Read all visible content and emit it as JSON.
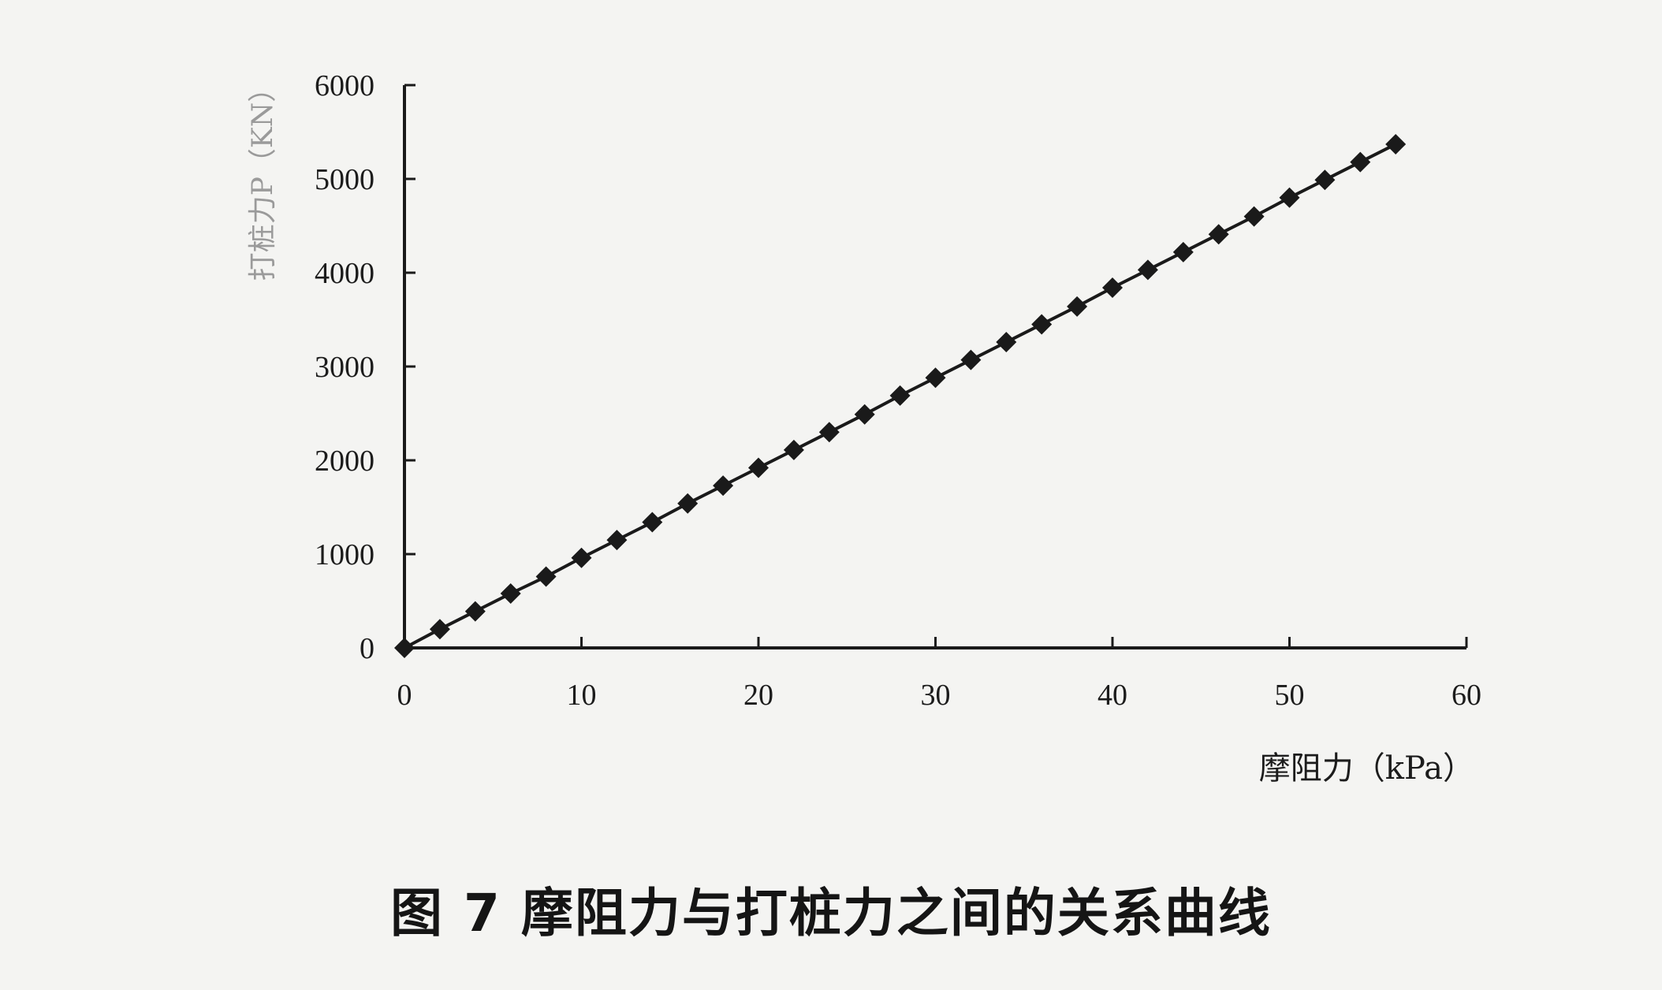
{
  "caption": "图 7 摩阻力与打桩力之间的关系曲线",
  "chart_data": {
    "type": "line",
    "marker": "diamond",
    "xlabel": "摩阻力（kPa）",
    "ylabel": "打桩力P（KN）",
    "xlim": [
      0,
      60
    ],
    "ylim": [
      0,
      6000
    ],
    "x_ticks": [
      "0",
      "10",
      "20",
      "30",
      "40",
      "50",
      "60"
    ],
    "y_ticks": [
      "0",
      "1000",
      "2000",
      "3000",
      "4000",
      "5000",
      "6000"
    ],
    "grid": false,
    "series_color": "#1a1a1a",
    "x": [
      0,
      2,
      4,
      6,
      8,
      10,
      12,
      14,
      16,
      18,
      20,
      22,
      24,
      26,
      28,
      30,
      32,
      34,
      36,
      38,
      40,
      42,
      44,
      46,
      48,
      50,
      52,
      54,
      56
    ],
    "y": [
      0,
      200,
      390,
      580,
      760,
      960,
      1150,
      1340,
      1540,
      1730,
      1920,
      2110,
      2300,
      2490,
      2690,
      2880,
      3070,
      3260,
      3450,
      3640,
      3840,
      4030,
      4220,
      4410,
      4600,
      4800,
      4990,
      5180,
      5370
    ]
  }
}
